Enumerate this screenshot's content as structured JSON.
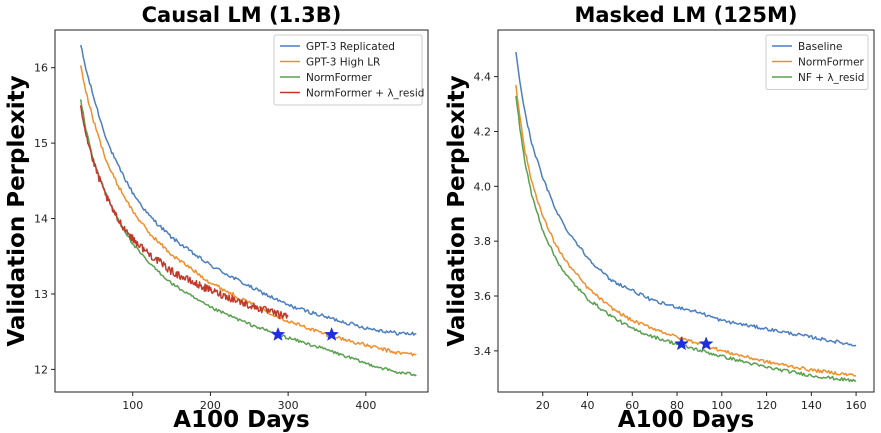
{
  "chart_data": [
    {
      "type": "line",
      "title": "Causal LM (1.3B)",
      "xlabel": "A100 Days",
      "ylabel": "Validation Perplexity",
      "xlim": [
        0,
        480
      ],
      "ylim": [
        11.7,
        16.5
      ],
      "xticks": [
        100,
        200,
        300,
        400
      ],
      "yticks": [
        12,
        13,
        14,
        15,
        16
      ],
      "legend_position": "top-right",
      "series": [
        {
          "name": "GPT-3 Replicated",
          "color": "#4c7fbf",
          "noise": 0.025,
          "x": [
            33,
            40,
            50,
            60,
            70,
            80,
            100,
            120,
            150,
            180,
            200,
            250,
            300,
            350,
            400,
            440,
            465
          ],
          "y": [
            16.3,
            15.97,
            15.6,
            15.25,
            14.95,
            14.72,
            14.34,
            14.05,
            13.75,
            13.52,
            13.38,
            13.1,
            12.85,
            12.69,
            12.55,
            12.48,
            12.47
          ]
        },
        {
          "name": "GPT-3 High LR",
          "color": "#f28e2b",
          "noise": 0.025,
          "x": [
            33,
            40,
            50,
            60,
            70,
            80,
            100,
            120,
            150,
            180,
            200,
            250,
            300,
            350,
            400,
            440,
            465
          ],
          "y": [
            16.03,
            15.67,
            15.28,
            14.95,
            14.67,
            14.46,
            14.1,
            13.82,
            13.52,
            13.3,
            13.15,
            12.88,
            12.64,
            12.46,
            12.32,
            12.22,
            12.2
          ]
        },
        {
          "name": "NormFormer",
          "color": "#59a14f",
          "noise": 0.02,
          "x": [
            33,
            40,
            50,
            60,
            70,
            80,
            100,
            120,
            150,
            180,
            200,
            250,
            290,
            350,
            400,
            440,
            465
          ],
          "y": [
            15.58,
            15.17,
            14.76,
            14.47,
            14.22,
            14.01,
            13.66,
            13.42,
            13.14,
            12.94,
            12.82,
            12.6,
            12.45,
            12.26,
            12.08,
            11.96,
            11.93
          ]
        },
        {
          "name": "NormFormer + λ_resid",
          "color": "#c0392b",
          "noise": 0.05,
          "x": [
            33,
            40,
            50,
            60,
            70,
            80,
            100,
            120,
            150,
            180,
            200,
            250,
            290,
            300
          ],
          "y": [
            15.5,
            15.12,
            14.72,
            14.44,
            14.2,
            14.0,
            13.73,
            13.54,
            13.3,
            13.14,
            13.05,
            12.85,
            12.72,
            12.7
          ]
        }
      ],
      "markers": [
        {
          "x": 287,
          "y": 12.46,
          "color": "#1f2fe0",
          "shape": "star"
        },
        {
          "x": 356,
          "y": 12.46,
          "color": "#1f2fe0",
          "shape": "star"
        }
      ]
    },
    {
      "type": "line",
      "title": "Masked LM (125M)",
      "xlabel": "A100 Days",
      "ylabel": "Validation Perplexity",
      "xlim": [
        0,
        168
      ],
      "ylim": [
        3.25,
        4.57
      ],
      "xticks": [
        20,
        40,
        60,
        80,
        100,
        120,
        140,
        160
      ],
      "yticks": [
        3.4,
        3.6,
        3.8,
        4.0,
        4.2,
        4.4
      ],
      "yticklabels": [
        "3.4",
        "3.6",
        "3.8",
        "4.0",
        "4.2",
        "4.4"
      ],
      "legend_position": "top-right",
      "series": [
        {
          "name": "Baseline",
          "color": "#4c7fbf",
          "noise": 0.006,
          "x": [
            8,
            10,
            12,
            15,
            20,
            25,
            30,
            40,
            50,
            60,
            70,
            80,
            90,
            100,
            120,
            140,
            160
          ],
          "y": [
            4.49,
            4.37,
            4.27,
            4.16,
            4.03,
            3.93,
            3.85,
            3.74,
            3.66,
            3.62,
            3.58,
            3.56,
            3.54,
            3.51,
            3.48,
            3.45,
            3.42
          ]
        },
        {
          "name": "NormFormer",
          "color": "#f28e2b",
          "noise": 0.006,
          "x": [
            8,
            10,
            12,
            15,
            20,
            25,
            30,
            40,
            50,
            60,
            70,
            80,
            93,
            100,
            120,
            140,
            160
          ],
          "y": [
            4.37,
            4.24,
            4.13,
            4.02,
            3.89,
            3.8,
            3.73,
            3.63,
            3.56,
            3.51,
            3.48,
            3.45,
            3.42,
            3.4,
            3.36,
            3.33,
            3.31
          ]
        },
        {
          "name": "NF + λ_resid",
          "color": "#59a14f",
          "noise": 0.006,
          "x": [
            8,
            10,
            12,
            15,
            20,
            25,
            30,
            40,
            50,
            60,
            70,
            82,
            100,
            120,
            140,
            160
          ],
          "y": [
            4.33,
            4.2,
            4.09,
            3.97,
            3.84,
            3.75,
            3.68,
            3.59,
            3.53,
            3.48,
            3.45,
            3.42,
            3.38,
            3.34,
            3.31,
            3.29
          ]
        }
      ],
      "markers": [
        {
          "x": 82,
          "y": 3.425,
          "color": "#1f2fe0",
          "shape": "star"
        },
        {
          "x": 93,
          "y": 3.425,
          "color": "#1f2fe0",
          "shape": "star"
        }
      ]
    }
  ]
}
